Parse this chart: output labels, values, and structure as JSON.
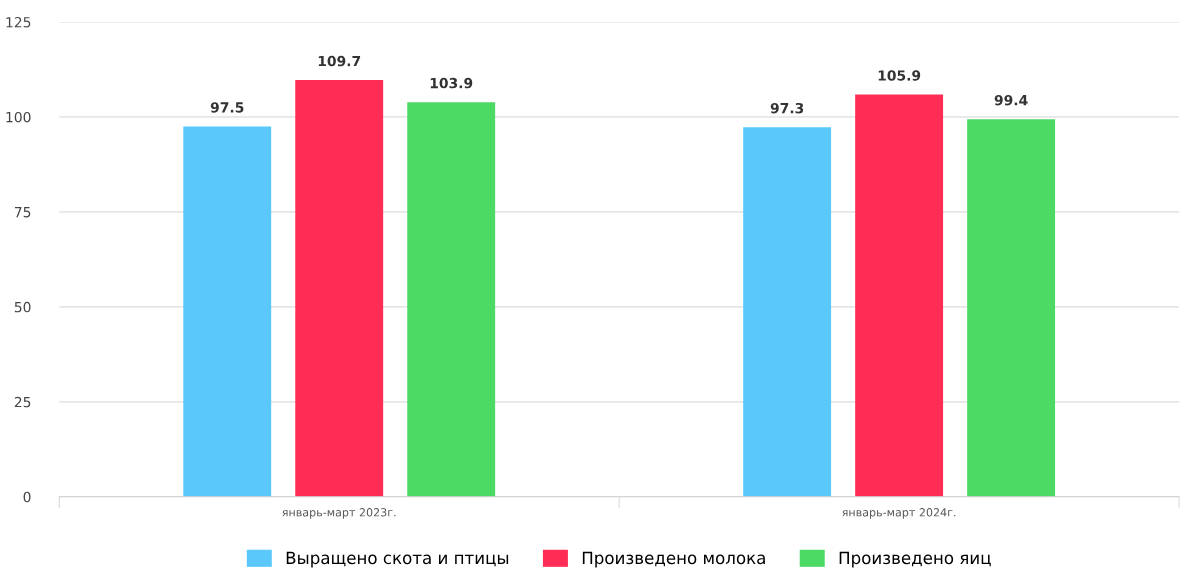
{
  "chart_data": {
    "type": "bar",
    "categories": [
      "январь-март 2023г.",
      "январь-март 2024г."
    ],
    "series": [
      {
        "name": "Выращено скота и птицы",
        "color": "#5ac8fa",
        "values": [
          97.5,
          97.3
        ]
      },
      {
        "name": "Произведено молока",
        "color": "#ff2d55",
        "values": [
          109.7,
          105.9
        ]
      },
      {
        "name": "Произведено яиц",
        "color": "#4cd964",
        "values": [
          103.9,
          99.4
        ]
      }
    ],
    "ylim": [
      0,
      125
    ],
    "yticks": [
      0,
      25,
      50,
      75,
      100,
      125
    ],
    "grid": "y",
    "legend": "bottom",
    "data_labels": true
  }
}
